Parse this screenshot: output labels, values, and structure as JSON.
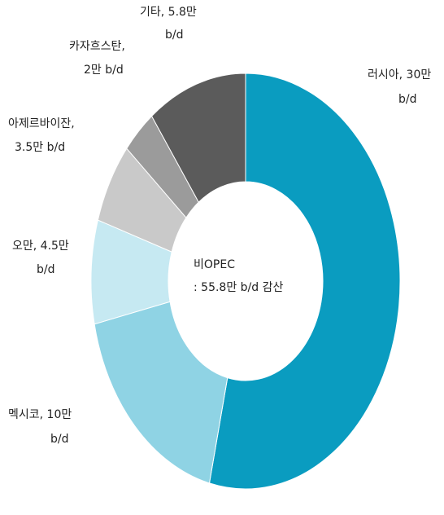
{
  "chart_data": {
    "type": "donut",
    "categories": [
      "러시아",
      "멕시코",
      "오만",
      "아제르바이잔",
      "카자흐스탄",
      "기타"
    ],
    "values": [
      30,
      10,
      4.5,
      3.5,
      2,
      5.8
    ],
    "labels": [
      [
        "러시아, 30만",
        "b/d"
      ],
      [
        "멕시코, 10만",
        "b/d"
      ],
      [
        "오만, 4.5만",
        "b/d"
      ],
      [
        "아제르바이잔,",
        "3.5만 b/d"
      ],
      [
        "카자흐스탄,",
        "2만 b/d"
      ],
      [
        "기타, 5.8만",
        "b/d"
      ]
    ],
    "colors": [
      "#0a9cc0",
      "#8fd3e4",
      "#c6e9f2",
      "#c9c9c9",
      "#9b9b9b",
      "#5b5b5b"
    ],
    "center_text": [
      "비OPEC",
      ": 55.8만 b/d 감산"
    ]
  }
}
